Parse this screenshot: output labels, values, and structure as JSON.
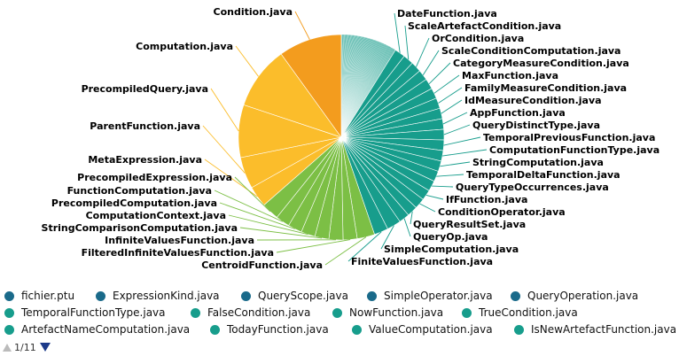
{
  "chart_data": {
    "type": "pie",
    "labels_left": [
      "Condition.java",
      "Computation.java",
      "PrecompiledQuery.java",
      "ParentFunction.java",
      "MetaExpression.java",
      "PrecompiledExpression.java",
      "FunctionComputation.java",
      "PrecompiledComputation.java",
      "ComputationContext.java",
      "StringComparisonComputation.java",
      "InfiniteValuesFunction.java",
      "FilteredInfiniteValuesFunction.java",
      "CentroidFunction.java"
    ],
    "labels_right": [
      "DateFunction.java",
      "ScaleArtefactCondition.java",
      "OrCondition.java",
      "ScaleConditionComputation.java",
      "CategoryMeasureCondition.java",
      "MaxFunction.java",
      "FamilyMeasureCondition.java",
      "IdMeasureCondition.java",
      "AppFunction.java",
      "QueryDistinctType.java",
      "TemporalPreviousFunction.java",
      "ComputationFunctionType.java",
      "StringComputation.java",
      "TemporalDeltaFunction.java",
      "QueryTypeOccurrences.java",
      "IfFunction.java",
      "ConditionOperator.java",
      "QueryResultSet.java",
      "QueryOp.java",
      "SimpleComputation.java",
      "FiniteValuesFunction.java"
    ],
    "slices": [
      {
        "name": "Condition.java",
        "value": 9.0,
        "color": "#f39c1e"
      },
      {
        "name": "Computation.java",
        "value": 9.0,
        "color": "#fbbd2b"
      },
      {
        "name": "PrecompiledQuery.java",
        "value": 7.5,
        "color": "#fbbd2b"
      },
      {
        "name": "ParentFunction.java",
        "value": 4.5,
        "color": "#fbbd2b"
      },
      {
        "name": "MetaExpression.java",
        "value": 3.0,
        "color": "#fbbd2b"
      },
      {
        "name": "PrecompiledExpression.java",
        "value": 2.5,
        "color": "#7cbf45"
      },
      {
        "name": "FunctionComputation.java",
        "value": 2.0,
        "color": "#7cbf45"
      },
      {
        "name": "PrecompiledComputation.java",
        "value": 2.0,
        "color": "#7cbf45"
      },
      {
        "name": "ComputationContext.java",
        "value": 2.0,
        "color": "#7cbf45"
      },
      {
        "name": "StringComparisonComputation.java",
        "value": 2.0,
        "color": "#7cbf45"
      },
      {
        "name": "InfiniteValuesFunction.java",
        "value": 2.0,
        "color": "#7cbf45"
      },
      {
        "name": "FilteredInfiniteValuesFunction.java",
        "value": 2.0,
        "color": "#7cbf45"
      },
      {
        "name": "CentroidFunction.java",
        "value": 2.5,
        "color": "#7cbf45"
      },
      {
        "name": "FiniteValuesFunction.java",
        "value": 2.0,
        "color": "#179d8c"
      },
      {
        "name": "SimpleComputation.java",
        "value": 2.0,
        "color": "#179d8c"
      },
      {
        "name": "QueryOp.java",
        "value": 1.5,
        "color": "#179d8c"
      },
      {
        "name": "QueryResultSet.java",
        "value": 1.5,
        "color": "#179d8c"
      },
      {
        "name": "ConditionOperator.java",
        "value": 1.5,
        "color": "#179d8c"
      },
      {
        "name": "IfFunction.java",
        "value": 1.5,
        "color": "#179d8c"
      },
      {
        "name": "QueryTypeOccurrences.java",
        "value": 1.5,
        "color": "#179d8c"
      },
      {
        "name": "TemporalDeltaFunction.java",
        "value": 1.5,
        "color": "#179d8c"
      },
      {
        "name": "StringComputation.java",
        "value": 1.5,
        "color": "#179d8c"
      },
      {
        "name": "ComputationFunctionType.java",
        "value": 1.5,
        "color": "#179d8c"
      },
      {
        "name": "TemporalPreviousFunction.java",
        "value": 1.5,
        "color": "#179d8c"
      },
      {
        "name": "QueryDistinctType.java",
        "value": 1.5,
        "color": "#179d8c"
      },
      {
        "name": "AppFunction.java",
        "value": 1.5,
        "color": "#179d8c"
      },
      {
        "name": "IdMeasureCondition.java",
        "value": 1.5,
        "color": "#179d8c"
      },
      {
        "name": "FamilyMeasureCondition.java",
        "value": 1.5,
        "color": "#179d8c"
      },
      {
        "name": "MaxFunction.java",
        "value": 1.5,
        "color": "#179d8c"
      },
      {
        "name": "CategoryMeasureCondition.java",
        "value": 1.5,
        "color": "#179d8c"
      },
      {
        "name": "ScaleConditionComputation.java",
        "value": 1.5,
        "color": "#179d8c"
      },
      {
        "name": "OrCondition.java",
        "value": 1.5,
        "color": "#179d8c"
      },
      {
        "name": "ScaleArtefactCondition.java",
        "value": 1.5,
        "color": "#179d8c"
      },
      {
        "name": "DateFunction.java",
        "value": 1.5,
        "color": "#179d8c"
      }
    ],
    "tiny_slice_count": 80,
    "tiny_slice_color": "#179d8c"
  },
  "legend": {
    "rows": [
      [
        {
          "label": "fichier.ptu",
          "color": "#1a6a8a"
        },
        {
          "label": "ExpressionKind.java",
          "color": "#1a6a8a"
        },
        {
          "label": "QueryScope.java",
          "color": "#1a6a8a"
        },
        {
          "label": "SimpleOperator.java",
          "color": "#1a6a8a"
        },
        {
          "label": "QueryOperation.java",
          "color": "#1a6a8a"
        }
      ],
      [
        {
          "label": "TemporalFunctionType.java",
          "color": "#179d8c"
        },
        {
          "label": "FalseCondition.java",
          "color": "#179d8c"
        },
        {
          "label": "NowFunction.java",
          "color": "#179d8c"
        },
        {
          "label": "TrueCondition.java",
          "color": "#179d8c"
        }
      ],
      [
        {
          "label": "ArtefactNameComputation.java",
          "color": "#179d8c"
        },
        {
          "label": "TodayFunction.java",
          "color": "#179d8c"
        },
        {
          "label": "ValueComputation.java",
          "color": "#179d8c"
        },
        {
          "label": "IsNewArtefactFunction.java",
          "color": "#179d8c"
        }
      ]
    ]
  },
  "pager": {
    "text": "1/11"
  }
}
